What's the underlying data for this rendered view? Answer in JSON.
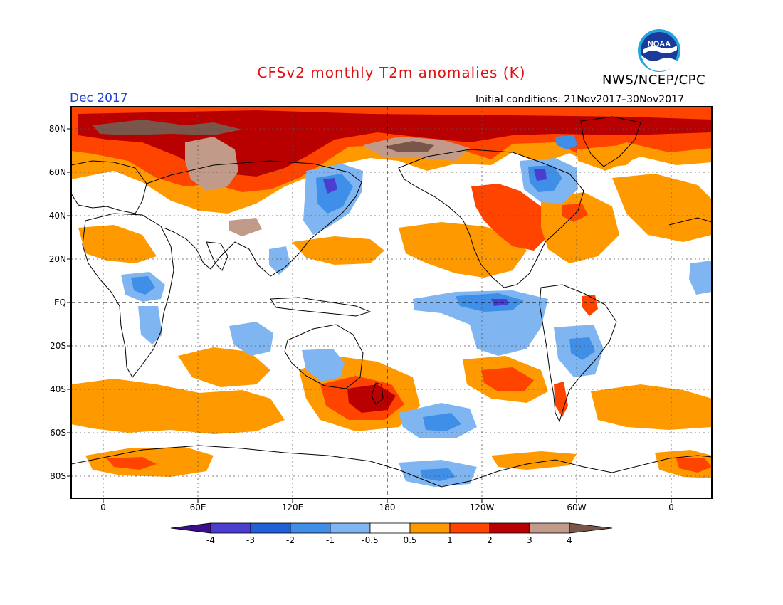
{
  "header": {
    "title": "CFSv2 monthly T2m anomalies (K)",
    "org": "NWS/NCEP/CPC",
    "period": "Dec 2017",
    "initial_conditions": "Initial conditions: 21Nov2017–30Nov2017",
    "logo_text": "NOAA"
  },
  "map": {
    "lat_labels": [
      "80N",
      "60N",
      "40N",
      "20N",
      "EQ",
      "20S",
      "40S",
      "60S",
      "80S"
    ],
    "lon_labels": [
      "0",
      "60E",
      "120E",
      "180",
      "120W",
      "60W",
      "0"
    ]
  },
  "colorbar": {
    "labels": [
      "-4",
      "-3",
      "-2",
      "-1",
      "-0.5",
      "0.5",
      "1",
      "2",
      "3",
      "4"
    ],
    "colors": [
      "#3a0e8c",
      "#4a3dd0",
      "#1f5fd8",
      "#3f8ee8",
      "#7fb6f2",
      "#ffffff",
      "#ff9900",
      "#ff4400",
      "#b80000",
      "#c29a8a",
      "#8a5a4e"
    ]
  },
  "colors": {
    "warm1": "#ff9900",
    "warm2": "#ff4400",
    "warm3": "#b80000",
    "warm4": "#c29a8a",
    "warm5": "#7a554a",
    "cool1": "#7fb6f2",
    "cool2": "#3f8ee8",
    "cool3": "#1f5fd8",
    "cool4": "#4a3dd0"
  }
}
